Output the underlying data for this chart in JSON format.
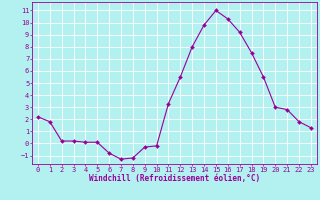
{
  "x": [
    0,
    1,
    2,
    3,
    4,
    5,
    6,
    7,
    8,
    9,
    10,
    11,
    12,
    13,
    14,
    15,
    16,
    17,
    18,
    19,
    20,
    21,
    22,
    23
  ],
  "y": [
    2.2,
    1.8,
    0.2,
    0.2,
    0.1,
    0.1,
    -0.8,
    -1.3,
    -1.2,
    -0.3,
    -0.2,
    3.3,
    5.5,
    8.0,
    9.8,
    11.0,
    10.3,
    9.2,
    7.5,
    5.5,
    3.0,
    2.8,
    1.8,
    1.3
  ],
  "line_color": "#990099",
  "marker": "D",
  "marker_size": 2.0,
  "bg_color": "#b3f0f0",
  "grid_color": "#ffffff",
  "xlabel": "Windchill (Refroidissement éolien,°C)",
  "xlim": [
    -0.5,
    23.5
  ],
  "ylim": [
    -1.7,
    11.7
  ],
  "yticks": [
    -1,
    0,
    1,
    2,
    3,
    4,
    5,
    6,
    7,
    8,
    9,
    10,
    11
  ],
  "xticks": [
    0,
    1,
    2,
    3,
    4,
    5,
    6,
    7,
    8,
    9,
    10,
    11,
    12,
    13,
    14,
    15,
    16,
    17,
    18,
    19,
    20,
    21,
    22,
    23
  ],
  "tick_color": "#990099",
  "label_color": "#990099",
  "axis_color": "#990099",
  "tick_labelsize": 5.0,
  "xlabel_fontsize": 5.5
}
